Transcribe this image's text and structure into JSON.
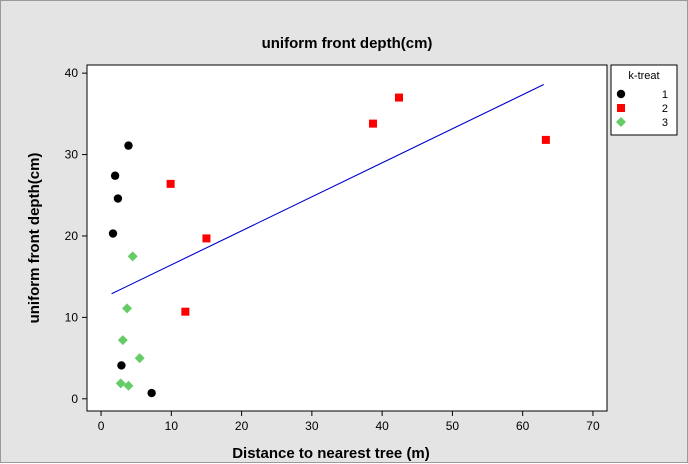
{
  "chart_data": {
    "type": "scatter",
    "title": "uniform front depth(cm)",
    "xlabel": "Distance to nearest tree (m)",
    "ylabel": "uniform front depth(cm)",
    "xlim": [
      -2,
      72
    ],
    "ylim": [
      -1.5,
      41
    ],
    "x_ticks": [
      0,
      10,
      20,
      30,
      40,
      50,
      60,
      70
    ],
    "y_ticks": [
      0,
      10,
      20,
      30,
      40
    ],
    "grid": false,
    "legend": {
      "title": "k-treat",
      "placement": "right"
    },
    "series": [
      {
        "name": "1",
        "marker": "circle",
        "color": "#000000",
        "points": [
          {
            "x": 3.9,
            "y": 31.1
          },
          {
            "x": 2.0,
            "y": 27.4
          },
          {
            "x": 2.4,
            "y": 24.6
          },
          {
            "x": 1.7,
            "y": 20.3
          },
          {
            "x": 2.9,
            "y": 4.1
          },
          {
            "x": 7.2,
            "y": 0.7
          }
        ]
      },
      {
        "name": "2",
        "marker": "square",
        "color": "#ff0000",
        "points": [
          {
            "x": 42.4,
            "y": 37.0
          },
          {
            "x": 38.7,
            "y": 33.8
          },
          {
            "x": 63.3,
            "y": 31.8
          },
          {
            "x": 9.9,
            "y": 26.4
          },
          {
            "x": 15.0,
            "y": 19.7
          },
          {
            "x": 12.0,
            "y": 10.7
          }
        ]
      },
      {
        "name": "3",
        "marker": "diamond",
        "color": "#66cc66",
        "points": [
          {
            "x": 4.5,
            "y": 17.5
          },
          {
            "x": 3.7,
            "y": 11.1
          },
          {
            "x": 3.1,
            "y": 7.2
          },
          {
            "x": 5.5,
            "y": 5.0
          },
          {
            "x": 2.8,
            "y": 1.9
          },
          {
            "x": 3.9,
            "y": 1.6
          }
        ]
      }
    ],
    "fit_line": {
      "color": "#0000cc",
      "x": [
        1.5,
        63.0
      ],
      "y": [
        12.9,
        38.6
      ]
    }
  }
}
